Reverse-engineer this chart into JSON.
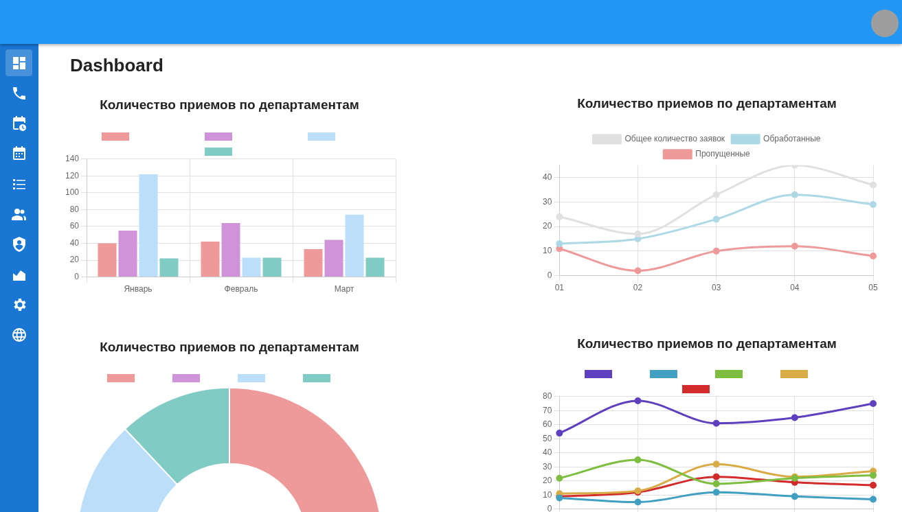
{
  "chart_data": [
    {
      "type": "other",
      "title": "Dashboard"
    },
    {
      "type": "bar",
      "title": "Количество приемов по департаментам",
      "categories": [
        "Январь",
        "Февраль",
        "Март"
      ],
      "grid": true,
      "ylim": [
        0,
        140
      ],
      "yticks": [
        0,
        20,
        40,
        60,
        80,
        100,
        120,
        140
      ],
      "series": [
        {
          "color": "#ef9a9a",
          "values": [
            40,
            42,
            33
          ]
        },
        {
          "color": "#ce93d8",
          "values": [
            55,
            64,
            44
          ]
        },
        {
          "color": "#bbdefb",
          "values": [
            122,
            23,
            74
          ]
        },
        {
          "color": "#80cbc4",
          "values": [
            22,
            23,
            23
          ]
        }
      ]
    },
    {
      "type": "line",
      "title": "Количество приемов по департаментам",
      "categories": [
        "01",
        "02",
        "03",
        "04",
        "05"
      ],
      "legend": "top",
      "grid": true,
      "marker": "circle",
      "ylim": [
        0,
        45
      ],
      "yticks": [
        0,
        10,
        20,
        30,
        40
      ],
      "series": [
        {
          "name": "Общее количество заявок",
          "color": "#e0e0e0",
          "values": [
            24,
            17,
            33,
            45,
            37
          ]
        },
        {
          "name": "Обработанные",
          "color": "#add8e6",
          "values": [
            13,
            15,
            23,
            33,
            29
          ]
        },
        {
          "name": "Пропущенные",
          "color": "#ef9a9a",
          "values": [
            11,
            2,
            10,
            12,
            8
          ]
        }
      ]
    },
    {
      "type": "donut",
      "title": "Количество приемов по департаментам",
      "categories": [
        null,
        null,
        null,
        null
      ],
      "values": [
        65,
        null,
        23,
        12
      ],
      "colors": [
        "#ef9a9a",
        "#ce93d8",
        "#bbdefb",
        "#80cbc4"
      ]
    },
    {
      "type": "line",
      "title": "Количество приемов по департаментам",
      "categories": [
        null,
        null,
        null,
        null,
        null
      ],
      "grid": true,
      "marker": "circle",
      "tick_labels": "y",
      "ylim": [
        0,
        80
      ],
      "yticks": [
        0,
        10,
        20,
        30,
        40,
        50,
        60,
        70,
        80
      ],
      "series": [
        {
          "color": "#5e40be",
          "values": [
            54,
            77,
            61,
            65,
            75
          ]
        },
        {
          "color": "#419fc2",
          "values": [
            8,
            5,
            12,
            9,
            7
          ]
        },
        {
          "color": "#7dbe41",
          "values": [
            22,
            35,
            18,
            22,
            24
          ]
        },
        {
          "color": "#d9ab46",
          "values": [
            11,
            13,
            32,
            23,
            27
          ]
        },
        {
          "color": "#d12b2b",
          "values": [
            9,
            12,
            23,
            19,
            17
          ]
        }
      ]
    }
  ]
}
